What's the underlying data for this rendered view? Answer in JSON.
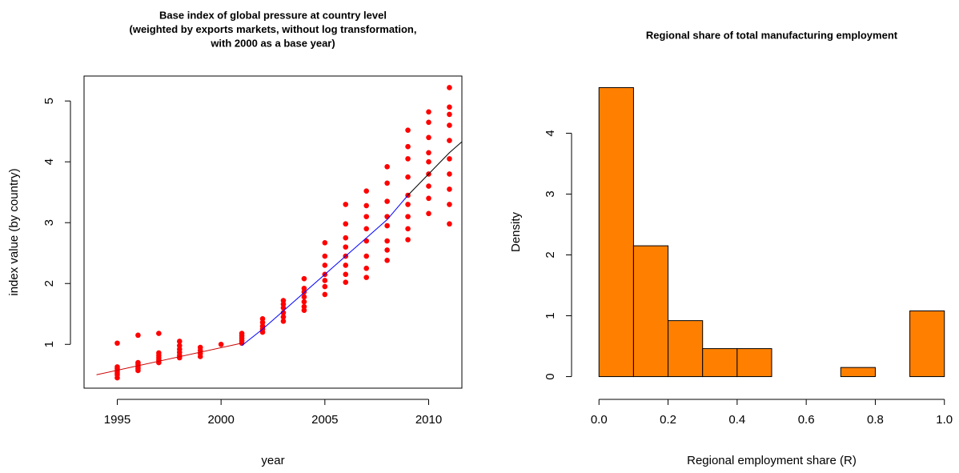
{
  "chart_data": [
    {
      "type": "scatter",
      "title": [
        "Base index of global pressure at country level",
        "(weighted by exports markets, without log transformation,",
        "with 2000 as a base year)"
      ],
      "xlabel": "year",
      "ylabel": "index value (by country)",
      "xlim": [
        1993.4,
        2011.6
      ],
      "ylim": [
        0.28,
        5.41
      ],
      "xticks": [
        1995,
        2000,
        2005,
        2010
      ],
      "yticks": [
        1,
        2,
        3,
        4,
        5
      ],
      "series": [
        {
          "mode": "markers",
          "color": "#ff0000",
          "x": [
            1995,
            1995,
            1995,
            1995,
            1995,
            1995,
            1995,
            1996,
            1996,
            1996,
            1996,
            1996,
            1996,
            1997,
            1997,
            1997,
            1997,
            1997,
            1997,
            1998,
            1998,
            1998,
            1998,
            1998,
            1998,
            1999,
            1999,
            1999,
            1999,
            2000,
            2001,
            2001,
            2001,
            2001,
            2001,
            2002,
            2002,
            2002,
            2002,
            2002,
            2003,
            2003,
            2003,
            2003,
            2003,
            2003,
            2004,
            2004,
            2004,
            2004,
            2004,
            2004,
            2004,
            2005,
            2005,
            2005,
            2005,
            2005,
            2005,
            2005,
            2006,
            2006,
            2006,
            2006,
            2006,
            2006,
            2006,
            2006,
            2007,
            2007,
            2007,
            2007,
            2007,
            2007,
            2007,
            2007,
            2008,
            2008,
            2008,
            2008,
            2008,
            2008,
            2008,
            2008,
            2009,
            2009,
            2009,
            2009,
            2009,
            2009,
            2009,
            2009,
            2009,
            2010,
            2010,
            2010,
            2010,
            2010,
            2010,
            2010,
            2010,
            2010,
            2011,
            2011,
            2011,
            2011,
            2011,
            2011,
            2011,
            2011,
            2011,
            2011
          ],
          "values": [
            0.45,
            0.5,
            0.53,
            0.56,
            0.6,
            0.63,
            1.02,
            0.57,
            0.6,
            0.63,
            0.67,
            0.7,
            1.15,
            0.7,
            0.74,
            0.78,
            0.82,
            0.86,
            1.18,
            0.78,
            0.82,
            0.87,
            0.92,
            0.98,
            1.05,
            0.8,
            0.85,
            0.9,
            0.95,
            1.0,
            1.02,
            1.06,
            1.1,
            1.14,
            1.18,
            1.2,
            1.25,
            1.3,
            1.36,
            1.42,
            1.38,
            1.45,
            1.52,
            1.6,
            1.66,
            1.72,
            1.56,
            1.62,
            1.7,
            1.78,
            1.86,
            1.92,
            2.08,
            1.82,
            1.95,
            2.05,
            2.15,
            2.3,
            2.45,
            2.67,
            2.02,
            2.15,
            2.3,
            2.45,
            2.6,
            2.75,
            2.98,
            3.3,
            2.1,
            2.25,
            2.45,
            2.7,
            2.9,
            3.1,
            3.28,
            3.52,
            2.38,
            2.55,
            2.7,
            2.95,
            3.1,
            3.35,
            3.65,
            3.92,
            2.72,
            2.9,
            3.1,
            3.3,
            3.45,
            3.75,
            4.05,
            4.25,
            4.52,
            3.15,
            3.4,
            3.6,
            3.8,
            4.0,
            4.15,
            4.4,
            4.65,
            4.82,
            2.98,
            3.3,
            3.55,
            3.8,
            4.05,
            4.35,
            4.6,
            4.78,
            4.9,
            5.22
          ]
        },
        {
          "mode": "line",
          "color": "#cc0000",
          "x": [
            1994,
            2001
          ],
          "values": [
            0.5,
            1.02
          ]
        },
        {
          "mode": "line",
          "color": "#0000ff",
          "x": [
            2001,
            2002,
            2003,
            2004,
            2005,
            2006,
            2007,
            2008,
            2009
          ],
          "values": [
            0.98,
            1.25,
            1.55,
            1.85,
            2.15,
            2.45,
            2.75,
            3.05,
            3.45
          ]
        },
        {
          "mode": "line",
          "color": "#000000",
          "x": [
            2009,
            2010,
            2011,
            2011.6
          ],
          "values": [
            3.45,
            3.8,
            4.15,
            4.33
          ]
        }
      ]
    },
    {
      "type": "histogram",
      "title": [
        "Regional share of total manufacturing employment"
      ],
      "xlabel": "Regional employment share (R)",
      "ylabel": "Density",
      "color": "#ff8000",
      "bins": [
        0,
        0.1,
        0.2,
        0.3,
        0.4,
        0.5,
        0.6,
        0.7,
        0.8,
        0.9,
        1.0
      ],
      "values": [
        4.75,
        2.15,
        0.92,
        0.46,
        0.46,
        0,
        0,
        0.15,
        0,
        1.08
      ],
      "xlim": [
        -0.04,
        1.04
      ],
      "ylim": [
        -0.19,
        4.94
      ],
      "xticks": [
        {
          "value": 0,
          "label": "0.0"
        },
        0.2,
        0.4,
        0.6,
        0.8,
        {
          "value": 1,
          "label": "1.0"
        }
      ],
      "yticks": [
        0,
        1,
        2,
        3,
        4
      ]
    }
  ]
}
